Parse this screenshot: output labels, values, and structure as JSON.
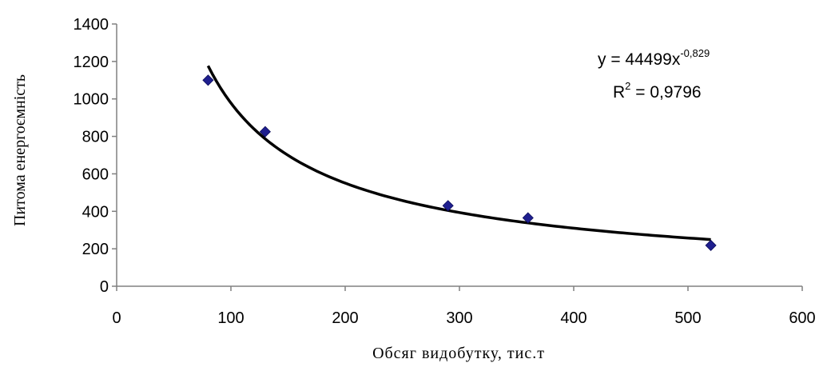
{
  "chart_data": {
    "type": "scatter",
    "xlabel": "Обсяг видобутку, тис.т",
    "ylabel": "Питома енергоємність",
    "xlim": [
      0,
      600
    ],
    "ylim": [
      0,
      1400
    ],
    "x_ticks": [
      0,
      100,
      200,
      300,
      400,
      500,
      600
    ],
    "y_ticks": [
      0,
      200,
      400,
      600,
      800,
      1000,
      1200,
      1400
    ],
    "grid": false,
    "legend": "none",
    "series": [
      {
        "points": [
          {
            "x": 80,
            "y": 1100
          },
          {
            "x": 130,
            "y": 825
          },
          {
            "x": 290,
            "y": 430
          },
          {
            "x": 360,
            "y": 365
          },
          {
            "x": 520,
            "y": 218
          }
        ],
        "color": "#1f1f8f",
        "marker": "diamond"
      }
    ],
    "trendline": {
      "type": "power",
      "coefficient": 44499,
      "exponent": -0.829,
      "x_range": [
        80,
        520
      ],
      "color": "#000000",
      "equation_prefix": "y = 44499x",
      "equation_exponent": "-0,829",
      "r2_prefix": "R",
      "r2_exponent": "2",
      "r2_suffix": " = 0,9796"
    }
  }
}
